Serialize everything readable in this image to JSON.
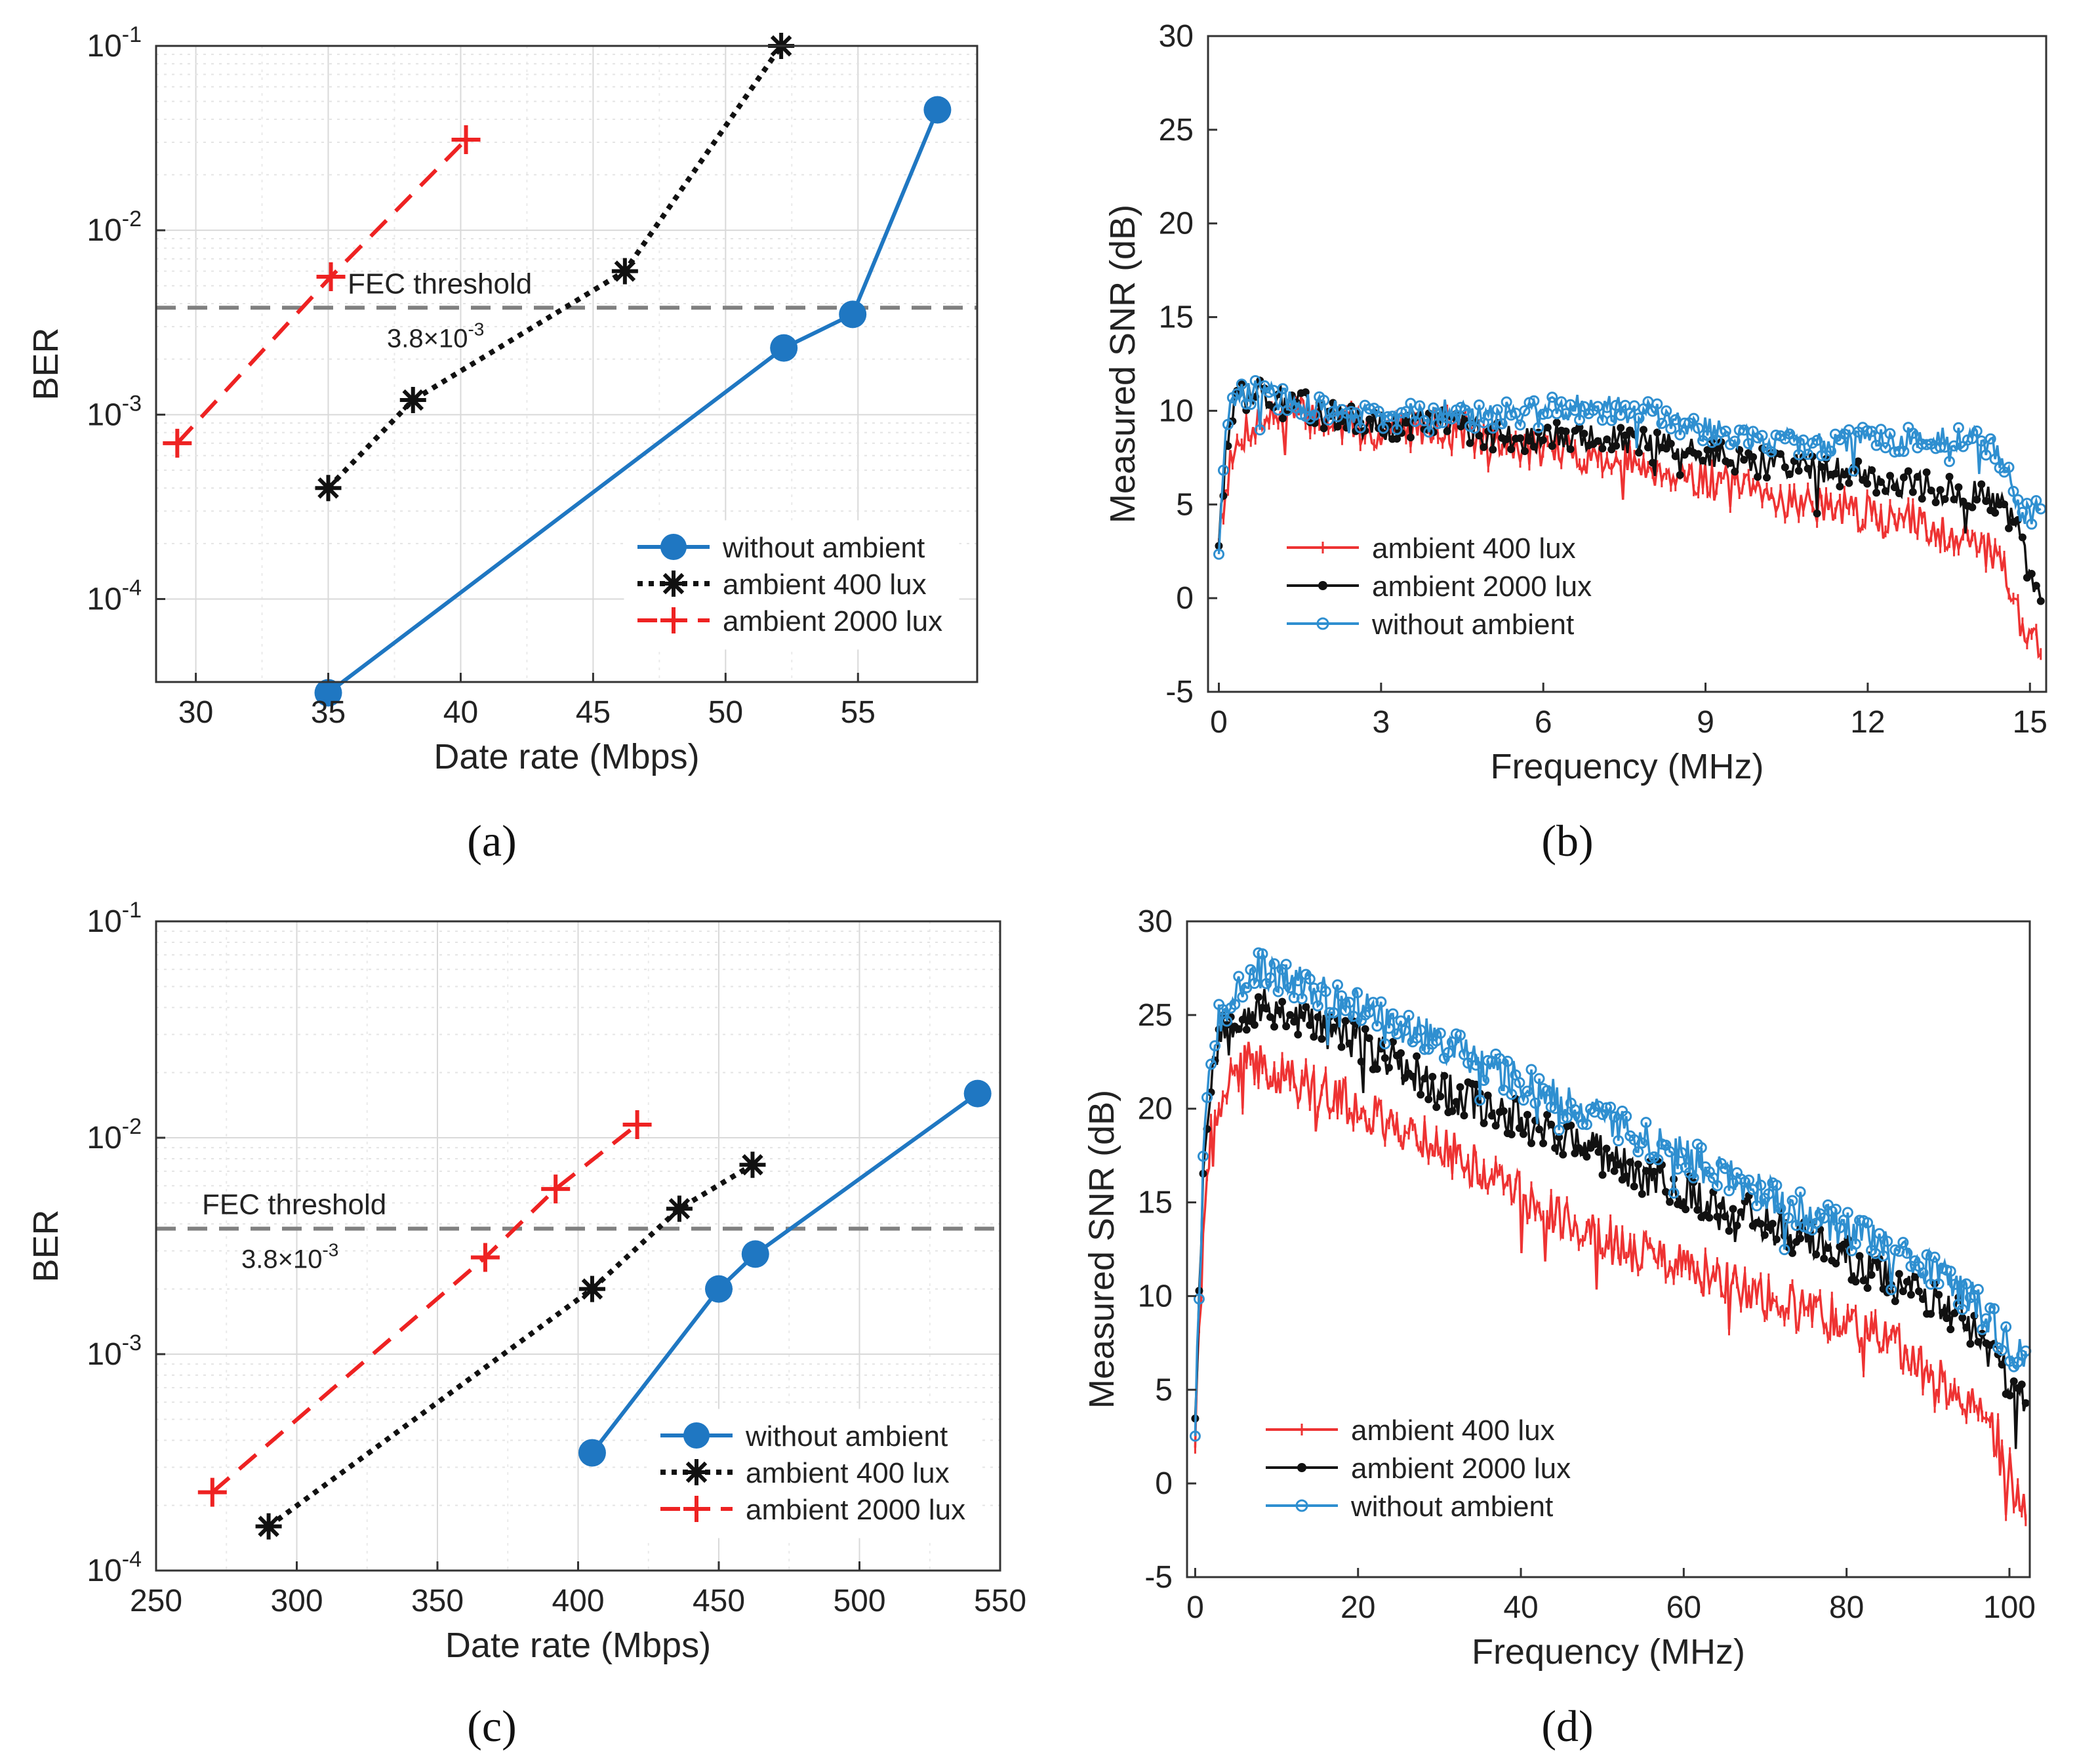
{
  "colors": {
    "blue": "#1f77c2",
    "black": "#111111",
    "red": "#ee2222",
    "grid": "#d9d9d9",
    "fec": "#808080",
    "snr_red": "#ee3333",
    "snr_black": "#111111",
    "snr_blue": "#2f8fd0"
  },
  "chart_data": [
    {
      "id": "a",
      "panel_label": "(a)",
      "type": "line",
      "yscale": "log",
      "xlabel": "Date rate (Mbps)",
      "ylabel": "BER",
      "xlim": [
        28.5,
        59.5
      ],
      "ylim_exp": [
        -4.45,
        -1
      ],
      "xticks": [
        30,
        35,
        40,
        45,
        50,
        55
      ],
      "yticks": [
        -4,
        -3,
        -2,
        -1
      ],
      "grid": true,
      "fec": {
        "value": 0.0038,
        "label": "FEC threshold",
        "sublabel": "3.8×10",
        "sub_exp": "-3"
      },
      "legend": {
        "position": "bottom-right"
      },
      "series": [
        {
          "name": "without ambient",
          "style": "solid",
          "marker": "circle",
          "color": "#1f77c2",
          "x": [
            35,
            52.2,
            54.8,
            58
          ],
          "y": [
            3.1e-05,
            0.0023,
            0.0035,
            0.045
          ]
        },
        {
          "name": "ambient 400 lux",
          "style": "dotted",
          "marker": "asterisk",
          "color": "#111111",
          "x": [
            35,
            38.2,
            46.2,
            52.1
          ],
          "y": [
            0.0004,
            0.0012,
            0.006,
            0.1
          ]
        },
        {
          "name": "ambient 2000 lux",
          "style": "dashed",
          "marker": "plus",
          "color": "#ee2222",
          "x": [
            29.3,
            35.1,
            40.2
          ],
          "y": [
            0.0007,
            0.0056,
            0.031
          ]
        }
      ]
    },
    {
      "id": "b",
      "panel_label": "(b)",
      "type": "line",
      "xlabel": "Frequency (MHz)",
      "ylabel": "Measured SNR (dB)",
      "xlim": [
        -0.2,
        15.3
      ],
      "ylim": [
        -5,
        30
      ],
      "xticks": [
        0,
        3,
        6,
        9,
        12,
        15
      ],
      "yticks": [
        -5,
        0,
        5,
        10,
        15,
        20,
        25,
        30
      ],
      "grid": false,
      "legend": {
        "position": "bottom-left"
      },
      "series": [
        {
          "name": "ambient 400 lux",
          "marker": "plus",
          "color": "#ee3333",
          "amp": 1.0,
          "seed": 7,
          "anchors_x": [
            0,
            0.15,
            0.35,
            0.5,
            1,
            1.5,
            2,
            2.5,
            3,
            3.5,
            4,
            4.5,
            5,
            6,
            7,
            8,
            9,
            10,
            11,
            12,
            13,
            14,
            14.5,
            14.8,
            15,
            15.2
          ],
          "anchors_y": [
            3.4,
            6.5,
            8.0,
            9.0,
            9.8,
            9.8,
            9.5,
            9.2,
            8.8,
            9.0,
            9.3,
            9.0,
            8.2,
            8.0,
            7.5,
            7.0,
            6.3,
            5.5,
            5.0,
            4.5,
            4.0,
            3.0,
            2.0,
            -1.0,
            -2.0,
            -2.5
          ]
        },
        {
          "name": "ambient 2000 lux",
          "marker": "dot",
          "color": "#111111",
          "amp": 0.8,
          "seed": 13,
          "anchors_x": [
            0,
            0.15,
            0.4,
            0.6,
            1,
            1.5,
            2,
            2.5,
            3,
            3.5,
            4,
            4.5,
            5,
            6,
            7,
            8,
            9,
            10,
            11,
            12,
            13,
            14,
            14.5,
            14.8,
            15,
            15.2
          ],
          "anchors_y": [
            3.2,
            8.5,
            11.5,
            11.2,
            10.8,
            10.3,
            9.8,
            9.5,
            9.2,
            9.2,
            9.5,
            9.2,
            8.7,
            8.6,
            8.5,
            8.2,
            7.8,
            7.2,
            7.0,
            6.5,
            6.0,
            5.5,
            4.8,
            3.5,
            1.0,
            0.0
          ]
        },
        {
          "name": "without ambient",
          "marker": "circle",
          "color": "#2f8fd0",
          "amp": 0.7,
          "seed": 29,
          "anchors_x": [
            0,
            0.15,
            0.4,
            0.6,
            1,
            1.5,
            2,
            2.5,
            3,
            3.5,
            4,
            4.5,
            5,
            6,
            7,
            8,
            9,
            10,
            11,
            12,
            13,
            14,
            14.5,
            14.8,
            15,
            15.2
          ],
          "anchors_y": [
            2.7,
            9.5,
            10.9,
            11.0,
            10.8,
            10.3,
            10.0,
            9.8,
            9.5,
            9.8,
            10.0,
            9.8,
            9.6,
            10.2,
            10.2,
            9.8,
            9.0,
            8.4,
            8.2,
            8.5,
            8.5,
            8.5,
            7.5,
            4.5,
            4.5,
            4.8
          ]
        }
      ]
    },
    {
      "id": "c",
      "panel_label": "(c)",
      "type": "line",
      "yscale": "log",
      "xlabel": "Date rate (Mbps)",
      "ylabel": "BER",
      "xlim": [
        250,
        550
      ],
      "ylim_exp": [
        -4,
        -1
      ],
      "xticks": [
        250,
        300,
        350,
        400,
        450,
        500,
        550
      ],
      "yticks": [
        -4,
        -3,
        -2,
        -1
      ],
      "grid": true,
      "fec": {
        "value": 0.0038,
        "label": "FEC threshold",
        "sublabel": "3.8×10",
        "sub_exp": "-3"
      },
      "legend": {
        "position": "bottom-right"
      },
      "series": [
        {
          "name": "without ambient",
          "style": "solid",
          "marker": "circle",
          "color": "#1f77c2",
          "x": [
            405,
            450,
            463,
            542
          ],
          "y": [
            0.00035,
            0.002,
            0.0029,
            0.016
          ]
        },
        {
          "name": "ambient 400 lux",
          "style": "dotted",
          "marker": "asterisk",
          "color": "#111111",
          "x": [
            290,
            405,
            436,
            462
          ],
          "y": [
            0.00016,
            0.002,
            0.0047,
            0.0075
          ]
        },
        {
          "name": "ambient 2000 lux",
          "style": "dashed",
          "marker": "plus",
          "color": "#ee2222",
          "x": [
            270,
            367,
            392,
            421
          ],
          "y": [
            0.00023,
            0.0028,
            0.0058,
            0.0115
          ]
        }
      ]
    },
    {
      "id": "d",
      "panel_label": "(d)",
      "type": "line",
      "xlabel": "Frequency (MHz)",
      "ylabel": "Measured SNR (dB)",
      "xlim": [
        -1,
        102.5
      ],
      "ylim": [
        -5,
        30
      ],
      "xticks": [
        0,
        20,
        40,
        60,
        80,
        100
      ],
      "yticks": [
        -5,
        0,
        5,
        10,
        15,
        20,
        25,
        30
      ],
      "grid": false,
      "legend": {
        "position": "bottom-left"
      },
      "series": [
        {
          "name": "ambient 400 lux",
          "marker": "plus",
          "color": "#ee3333",
          "amp": 1.2,
          "seed": 41,
          "anchors_x": [
            0,
            0.5,
            1,
            2,
            3,
            5,
            7,
            10,
            15,
            20,
            25,
            30,
            40,
            50,
            60,
            70,
            80,
            85,
            90,
            95,
            98,
            100,
            101,
            102
          ],
          "anchors_y": [
            2.5,
            8.0,
            14.0,
            18.5,
            20.5,
            22.0,
            22.5,
            22.0,
            21.0,
            20.0,
            19.0,
            18.0,
            15.5,
            13.0,
            11.5,
            10.0,
            8.5,
            7.5,
            6.0,
            4.5,
            3.0,
            0.5,
            -1.0,
            -1.5
          ]
        },
        {
          "name": "ambient 2000 lux",
          "marker": "dot",
          "color": "#111111",
          "amp": 1.1,
          "seed": 53,
          "anchors_x": [
            0,
            0.5,
            1,
            2,
            3,
            5,
            7,
            10,
            15,
            20,
            25,
            30,
            40,
            50,
            60,
            70,
            80,
            85,
            90,
            95,
            98,
            100,
            101,
            102
          ],
          "anchors_y": [
            4.0,
            10.0,
            17.0,
            22.0,
            24.0,
            25.0,
            25.3,
            25.3,
            24.5,
            23.5,
            22.5,
            21.0,
            19.5,
            17.5,
            15.5,
            14.0,
            12.0,
            11.0,
            10.0,
            8.5,
            7.0,
            5.5,
            4.5,
            5.0
          ]
        },
        {
          "name": "without ambient",
          "marker": "circle",
          "color": "#2f8fd0",
          "amp": 1.0,
          "seed": 67,
          "anchors_x": [
            0,
            0.5,
            1,
            2,
            3,
            5,
            7,
            10,
            15,
            20,
            25,
            30,
            40,
            50,
            60,
            70,
            80,
            85,
            90,
            95,
            98,
            100,
            101,
            102
          ],
          "anchors_y": [
            3.0,
            11.0,
            18.0,
            23.0,
            25.0,
            26.5,
            27.5,
            27.0,
            26.3,
            25.5,
            24.5,
            23.5,
            21.5,
            19.5,
            17.5,
            15.5,
            13.5,
            12.5,
            11.5,
            10.0,
            8.5,
            7.5,
            7.0,
            6.8
          ]
        }
      ]
    }
  ]
}
